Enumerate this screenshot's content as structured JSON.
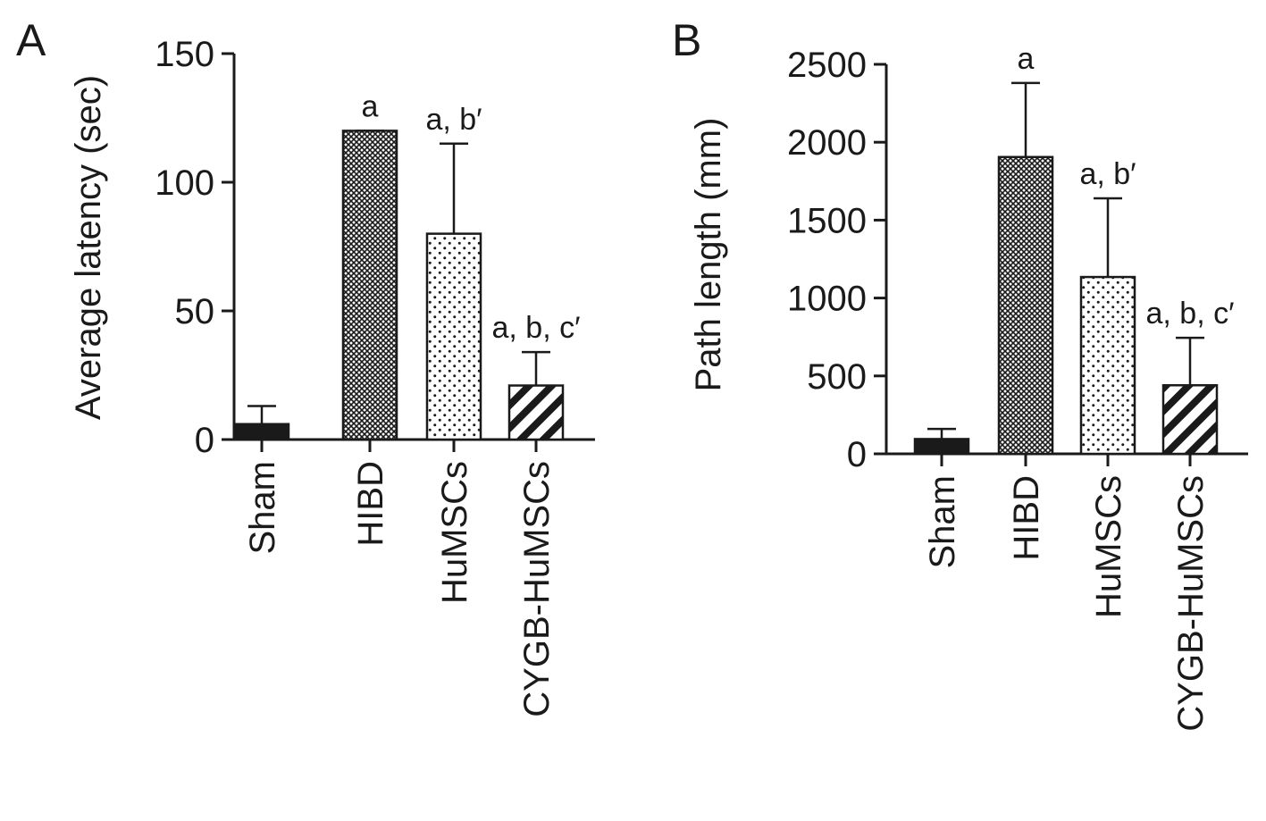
{
  "chart_data": [
    {
      "type": "bar",
      "panel_label": "A",
      "title": "",
      "xlabel": "",
      "ylabel": "Average latency (sec)",
      "ylim": [
        0,
        150
      ],
      "yticks": [
        0,
        50,
        100,
        150
      ],
      "categories": [
        "Sham",
        "HIBD",
        "HuMSCs",
        "CYGB-HuMSCs"
      ],
      "values": [
        6,
        120,
        80,
        21
      ],
      "errors": [
        7,
        0,
        35,
        13
      ],
      "annotations": [
        "",
        "a",
        "a, b′",
        "a, b, c′"
      ],
      "fills": [
        "solid",
        "crosshatch",
        "dots",
        "diagonal-stripes"
      ],
      "grid": false,
      "legend": "none"
    },
    {
      "type": "bar",
      "panel_label": "B",
      "title": "",
      "xlabel": "",
      "ylabel": "Path length (mm)",
      "ylim": [
        0,
        2500
      ],
      "yticks": [
        0,
        500,
        1000,
        1500,
        2000,
        2500
      ],
      "categories": [
        "Sham",
        "HIBD",
        "HuMSCs",
        "CYGB-HuMSCs"
      ],
      "values": [
        95,
        1905,
        1135,
        440
      ],
      "errors": [
        65,
        475,
        505,
        305
      ],
      "annotations": [
        "",
        "a",
        "a, b′",
        "a, b, c′"
      ],
      "fills": [
        "solid",
        "crosshatch",
        "dots",
        "diagonal-stripes"
      ],
      "grid": false,
      "legend": "none"
    }
  ],
  "colors": {
    "ink": "#1a1a1a",
    "background": "#ffffff"
  }
}
